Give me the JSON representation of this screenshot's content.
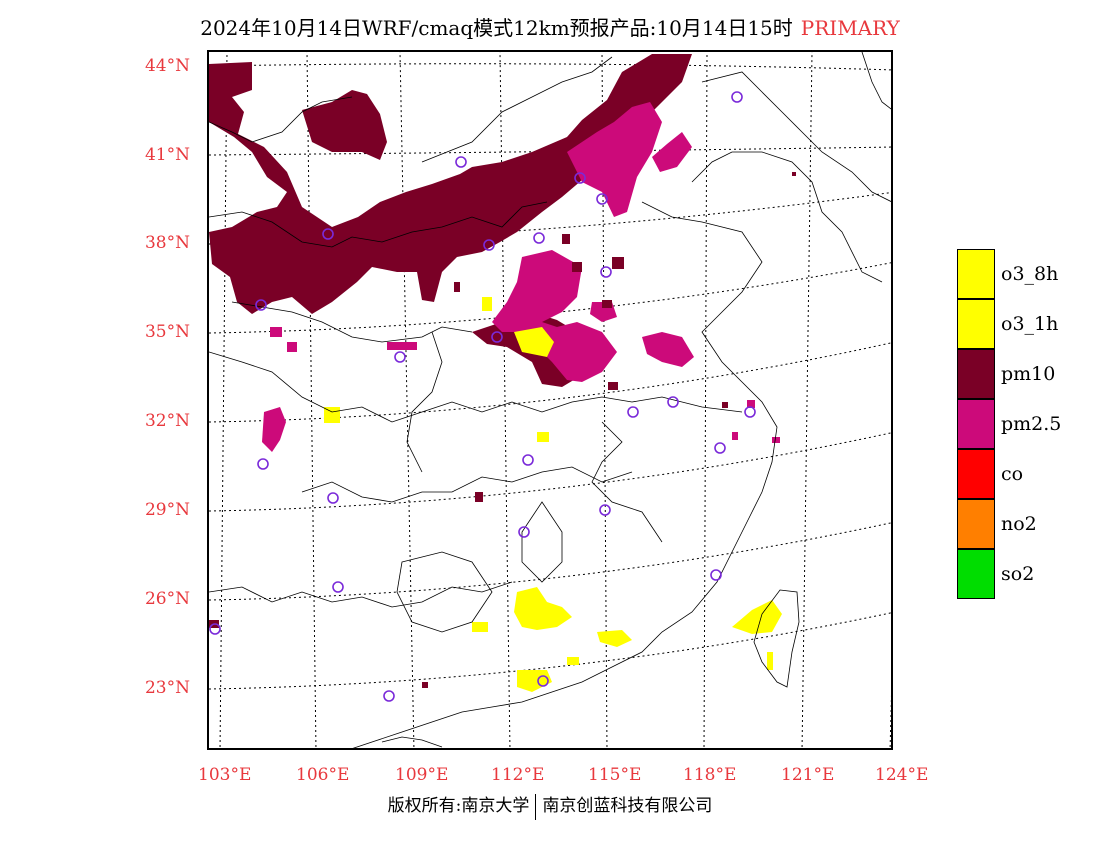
{
  "title": {
    "text": "2024年10月14日WRF/cmaq模式12km预报产品:10月14日15时",
    "tag": "PRIMARY"
  },
  "axes": {
    "lat_labels": [
      "44°N",
      "41°N",
      "38°N",
      "35°N",
      "32°N",
      "29°N",
      "26°N",
      "23°N"
    ],
    "lon_labels": [
      "103°E",
      "106°E",
      "109°E",
      "112°E",
      "115°E",
      "118°E",
      "121°E",
      "124°E"
    ]
  },
  "legend": [
    {
      "label": "o3_8h",
      "color": "#ffff00"
    },
    {
      "label": "o3_1h",
      "color": "#ffff00"
    },
    {
      "label": "pm10",
      "color": "#7a0026"
    },
    {
      "label": "pm2.5",
      "color": "#cc0a7a"
    },
    {
      "label": "co",
      "color": "#ff0000"
    },
    {
      "label": "no2",
      "color": "#ff7f00"
    },
    {
      "label": "so2",
      "color": "#00dd00"
    }
  ],
  "footer": {
    "left": "版权所有:南京大学",
    "right": "南京创蓝科技有限公司"
  },
  "colors": {
    "pm10": "#7a0026",
    "pm25": "#cc0a7a",
    "o3": "#ffff00",
    "station": "#7a2ad9",
    "label": "#e8383d"
  }
}
